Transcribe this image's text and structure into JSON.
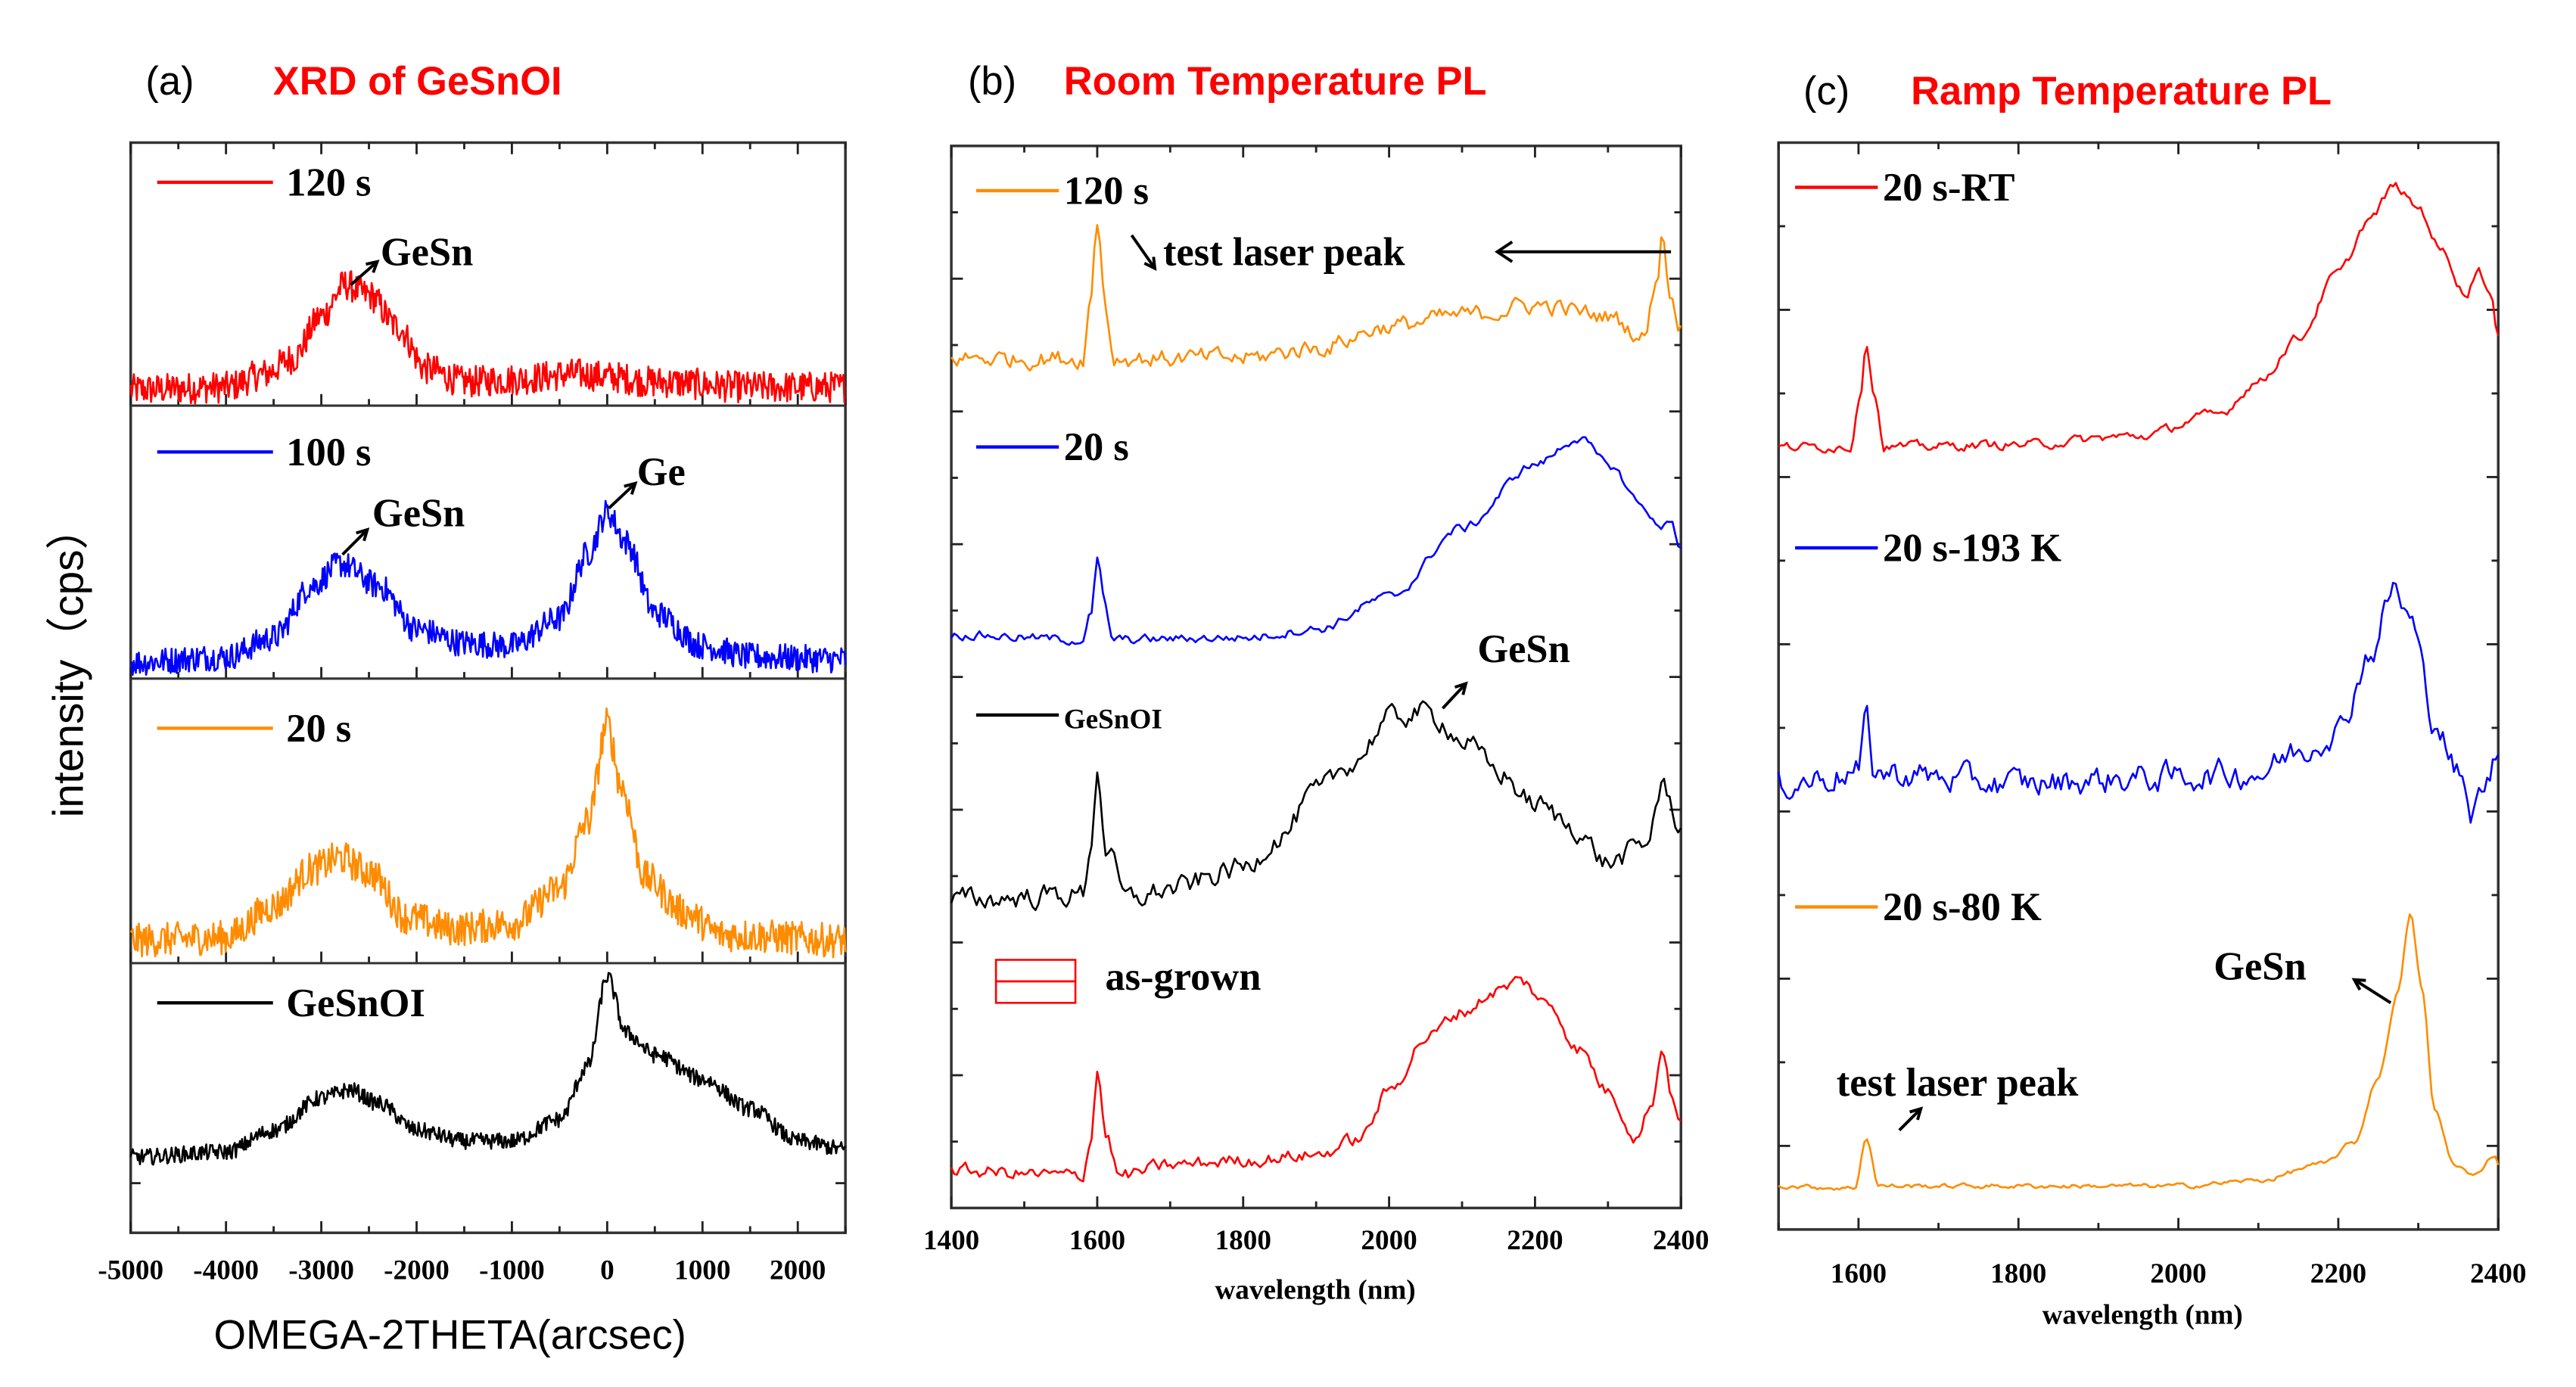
{
  "figure": {
    "background": "#ffffff",
    "title_color": "#ff0000",
    "shared_ylabel": "intensity（cps）"
  },
  "chart_data": [
    {
      "id": "a",
      "type": "line",
      "panel_label": "(a)",
      "title": "XRD of GeSnOI",
      "xlabel": "OMEGA-2THETA(arcsec)",
      "ylabel": "intensity（cps）",
      "xlim": [
        -5000,
        2500
      ],
      "xticks": [
        -5000,
        -4000,
        -3000,
        -2000,
        -1000,
        0,
        1000,
        2000
      ],
      "xtick_labels": [
        "-5000",
        "-4000",
        "-3000",
        "-2000",
        "-1000",
        "0",
        "1000",
        "2000"
      ],
      "layout": "stacked",
      "y_unit": "relative intensity per subplot (0-1)",
      "series": [
        {
          "name": "120 s",
          "color": "#ff0000",
          "noise": 0.06,
          "points": [
            [
              -5000,
              0.06
            ],
            [
              -4000,
              0.07
            ],
            [
              -3600,
              0.12
            ],
            [
              -3300,
              0.18
            ],
            [
              -3000,
              0.34
            ],
            [
              -2750,
              0.46
            ],
            [
              -2500,
              0.42
            ],
            [
              -2200,
              0.3
            ],
            [
              -1900,
              0.14
            ],
            [
              -1500,
              0.09
            ],
            [
              -1000,
              0.1
            ],
            [
              -300,
              0.12
            ],
            [
              0,
              0.11
            ],
            [
              500,
              0.09
            ],
            [
              1500,
              0.07
            ],
            [
              2500,
              0.07
            ]
          ],
          "annotations": [
            {
              "text": "GeSn",
              "x": -2700
            }
          ]
        },
        {
          "name": "100 s",
          "color": "#0000ff",
          "noise": 0.05,
          "points": [
            [
              -5000,
              0.06
            ],
            [
              -4000,
              0.08
            ],
            [
              -3500,
              0.15
            ],
            [
              -3100,
              0.34
            ],
            [
              -2800,
              0.42
            ],
            [
              -2400,
              0.34
            ],
            [
              -2000,
              0.18
            ],
            [
              -1500,
              0.13
            ],
            [
              -1000,
              0.12
            ],
            [
              -500,
              0.22
            ],
            [
              -200,
              0.46
            ],
            [
              0,
              0.61
            ],
            [
              200,
              0.5
            ],
            [
              500,
              0.24
            ],
            [
              1000,
              0.12
            ],
            [
              1500,
              0.08
            ],
            [
              2500,
              0.07
            ]
          ],
          "annotations": [
            {
              "text": "GeSn",
              "x": -2800
            },
            {
              "text": "Ge",
              "x": 0
            }
          ]
        },
        {
          "name": "20 s",
          "color": "#ff8c00",
          "noise": 0.06,
          "points": [
            [
              -5000,
              0.08
            ],
            [
              -4000,
              0.09
            ],
            [
              -3500,
              0.2
            ],
            [
              -3100,
              0.33
            ],
            [
              -2800,
              0.37
            ],
            [
              -2500,
              0.32
            ],
            [
              -2100,
              0.16
            ],
            [
              -1600,
              0.12
            ],
            [
              -1000,
              0.14
            ],
            [
              -500,
              0.26
            ],
            [
              -200,
              0.5
            ],
            [
              0,
              0.84
            ],
            [
              150,
              0.62
            ],
            [
              400,
              0.3
            ],
            [
              800,
              0.18
            ],
            [
              1200,
              0.1
            ],
            [
              2500,
              0.08
            ]
          ],
          "annotations": []
        },
        {
          "name": "GeSnOI",
          "color": "#000000",
          "noise": 0.03,
          "points": [
            [
              -5000,
              0.28
            ],
            [
              -4000,
              0.3
            ],
            [
              -3500,
              0.38
            ],
            [
              -3000,
              0.5
            ],
            [
              -2700,
              0.53
            ],
            [
              -2400,
              0.48
            ],
            [
              -2000,
              0.38
            ],
            [
              -1500,
              0.34
            ],
            [
              -1000,
              0.34
            ],
            [
              -500,
              0.42
            ],
            [
              -200,
              0.62
            ],
            [
              0,
              0.95
            ],
            [
              200,
              0.74
            ],
            [
              500,
              0.66
            ],
            [
              1000,
              0.57
            ],
            [
              1500,
              0.46
            ],
            [
              2000,
              0.34
            ],
            [
              2500,
              0.31
            ]
          ],
          "annotations": []
        }
      ]
    },
    {
      "id": "b",
      "type": "line",
      "panel_label": "(b)",
      "title": "Room Temperature PL",
      "xlabel": "wavelength (nm)",
      "ylabel": "",
      "xlim": [
        1400,
        2400
      ],
      "xticks": [
        1400,
        1600,
        1800,
        2000,
        2200,
        2400
      ],
      "xtick_labels": [
        "1400",
        "1600",
        "1800",
        "2000",
        "2200",
        "2400"
      ],
      "layout": "offset",
      "y_unit": "fraction of axis height (offset traces)",
      "ylim": [
        0,
        1
      ],
      "series": [
        {
          "name": "120 s",
          "color": "#ff8c00",
          "noise": 0.008,
          "points": [
            [
              1400,
              0.8
            ],
            [
              1580,
              0.8
            ],
            [
              1590,
              0.85
            ],
            [
              1600,
              0.93
            ],
            [
              1612,
              0.85
            ],
            [
              1622,
              0.8
            ],
            [
              1800,
              0.8
            ],
            [
              1900,
              0.81
            ],
            [
              2000,
              0.83
            ],
            [
              2100,
              0.84
            ],
            [
              2200,
              0.85
            ],
            [
              2300,
              0.84
            ],
            [
              2350,
              0.82
            ],
            [
              2368,
              0.88
            ],
            [
              2375,
              0.92
            ],
            [
              2385,
              0.86
            ],
            [
              2400,
              0.83
            ]
          ],
          "annotations": [
            {
              "text": "test laser peak",
              "x": 1600
            },
            {
              "text": "test laser peak",
              "x": 2375
            }
          ]
        },
        {
          "name": "20 s",
          "color": "#0000ff",
          "noise": 0.004,
          "points": [
            [
              1400,
              0.54
            ],
            [
              1580,
              0.535
            ],
            [
              1592,
              0.56
            ],
            [
              1600,
              0.61
            ],
            [
              1610,
              0.57
            ],
            [
              1620,
              0.535
            ],
            [
              1800,
              0.537
            ],
            [
              1900,
              0.545
            ],
            [
              2000,
              0.575
            ],
            [
              2100,
              0.64
            ],
            [
              2200,
              0.7
            ],
            [
              2260,
              0.725
            ],
            [
              2300,
              0.7
            ],
            [
              2350,
              0.66
            ],
            [
              2370,
              0.64
            ],
            [
              2385,
              0.65
            ],
            [
              2400,
              0.62
            ]
          ],
          "annotations": []
        },
        {
          "name": "GeSnOI",
          "color": "#000000",
          "noise": 0.01,
          "points": [
            [
              1400,
              0.29
            ],
            [
              1580,
              0.295
            ],
            [
              1593,
              0.35
            ],
            [
              1600,
              0.415
            ],
            [
              1612,
              0.34
            ],
            [
              1640,
              0.29
            ],
            [
              1700,
              0.3
            ],
            [
              1800,
              0.32
            ],
            [
              1850,
              0.35
            ],
            [
              1900,
              0.39
            ],
            [
              1950,
              0.42
            ],
            [
              2000,
              0.46
            ],
            [
              2040,
              0.467
            ],
            [
              2070,
              0.46
            ],
            [
              2100,
              0.44
            ],
            [
              2150,
              0.41
            ],
            [
              2200,
              0.38
            ],
            [
              2250,
              0.36
            ],
            [
              2300,
              0.325
            ],
            [
              2350,
              0.34
            ],
            [
              2375,
              0.396
            ],
            [
              2400,
              0.36
            ]
          ],
          "annotations": [
            {
              "text": "GeSn",
              "x": 2080
            }
          ]
        },
        {
          "name": "as-grown",
          "color": "#ff0000",
          "noise": 0.006,
          "points": [
            [
              1400,
              0.035
            ],
            [
              1580,
              0.03
            ],
            [
              1592,
              0.07
            ],
            [
              1600,
              0.13
            ],
            [
              1612,
              0.07
            ],
            [
              1630,
              0.03
            ],
            [
              1700,
              0.04
            ],
            [
              1800,
              0.045
            ],
            [
              1900,
              0.05
            ],
            [
              1960,
              0.065
            ],
            [
              2000,
              0.11
            ],
            [
              2050,
              0.16
            ],
            [
              2100,
              0.185
            ],
            [
              2150,
              0.205
            ],
            [
              2180,
              0.214
            ],
            [
              2220,
              0.19
            ],
            [
              2260,
              0.15
            ],
            [
              2300,
              0.11
            ],
            [
              2340,
              0.067
            ],
            [
              2360,
              0.1
            ],
            [
              2375,
              0.15
            ],
            [
              2390,
              0.1
            ],
            [
              2400,
              0.08
            ]
          ],
          "annotations": []
        }
      ]
    },
    {
      "id": "c",
      "type": "line",
      "panel_label": "(c)",
      "title": "Ramp Temperature PL",
      "xlabel": "wavelength (nm)",
      "ylabel": "",
      "xlim": [
        1500,
        2400
      ],
      "xticks": [
        1600,
        1800,
        2000,
        2200,
        2400
      ],
      "xtick_labels": [
        "1600",
        "1800",
        "2000",
        "2200",
        "2400"
      ],
      "layout": "offset",
      "y_unit": "fraction of axis height (offset traces)",
      "ylim": [
        0,
        1
      ],
      "series": [
        {
          "name": "20 s-RT",
          "color": "#ff0000",
          "noise": 0.004,
          "points": [
            [
              1500,
              0.72
            ],
            [
              1590,
              0.72
            ],
            [
              1602,
              0.77
            ],
            [
              1610,
              0.815
            ],
            [
              1620,
              0.77
            ],
            [
              1632,
              0.72
            ],
            [
              1800,
              0.722
            ],
            [
              1950,
              0.73
            ],
            [
              2050,
              0.75
            ],
            [
              2100,
              0.78
            ],
            [
              2150,
              0.82
            ],
            [
              2200,
              0.88
            ],
            [
              2240,
              0.93
            ],
            [
              2270,
              0.96
            ],
            [
              2300,
              0.94
            ],
            [
              2330,
              0.9
            ],
            [
              2360,
              0.86
            ],
            [
              2375,
              0.885
            ],
            [
              2390,
              0.86
            ],
            [
              2400,
              0.82
            ]
          ],
          "annotations": []
        },
        {
          "name": "20 s-193 K",
          "color": "#0000ff",
          "noise": 0.012,
          "points": [
            [
              1500,
              0.41
            ],
            [
              1600,
              0.42
            ],
            [
              1610,
              0.47
            ],
            [
              1620,
              0.42
            ],
            [
              1800,
              0.41
            ],
            [
              1950,
              0.415
            ],
            [
              2100,
              0.42
            ],
            [
              2150,
              0.44
            ],
            [
              2200,
              0.46
            ],
            [
              2240,
              0.53
            ],
            [
              2270,
              0.59
            ],
            [
              2290,
              0.56
            ],
            [
              2320,
              0.47
            ],
            [
              2350,
              0.42
            ],
            [
              2365,
              0.38
            ],
            [
              2385,
              0.41
            ],
            [
              2400,
              0.44
            ]
          ],
          "annotations": []
        },
        {
          "name": "20 s-80 K",
          "color": "#ff8c00",
          "noise": 0.002,
          "points": [
            [
              1500,
              0.04
            ],
            [
              1595,
              0.038
            ],
            [
              1610,
              0.085
            ],
            [
              1625,
              0.04
            ],
            [
              1800,
              0.04
            ],
            [
              2000,
              0.04
            ],
            [
              2100,
              0.045
            ],
            [
              2180,
              0.06
            ],
            [
              2220,
              0.08
            ],
            [
              2250,
              0.14
            ],
            [
              2275,
              0.22
            ],
            [
              2290,
              0.29
            ],
            [
              2305,
              0.22
            ],
            [
              2320,
              0.11
            ],
            [
              2345,
              0.06
            ],
            [
              2370,
              0.049
            ],
            [
              2395,
              0.069
            ],
            [
              2400,
              0.06
            ]
          ],
          "annotations": [
            {
              "text": "GeSn",
              "x": 2290
            },
            {
              "text": "test laser peak",
              "x": 1610
            }
          ]
        }
      ]
    }
  ]
}
